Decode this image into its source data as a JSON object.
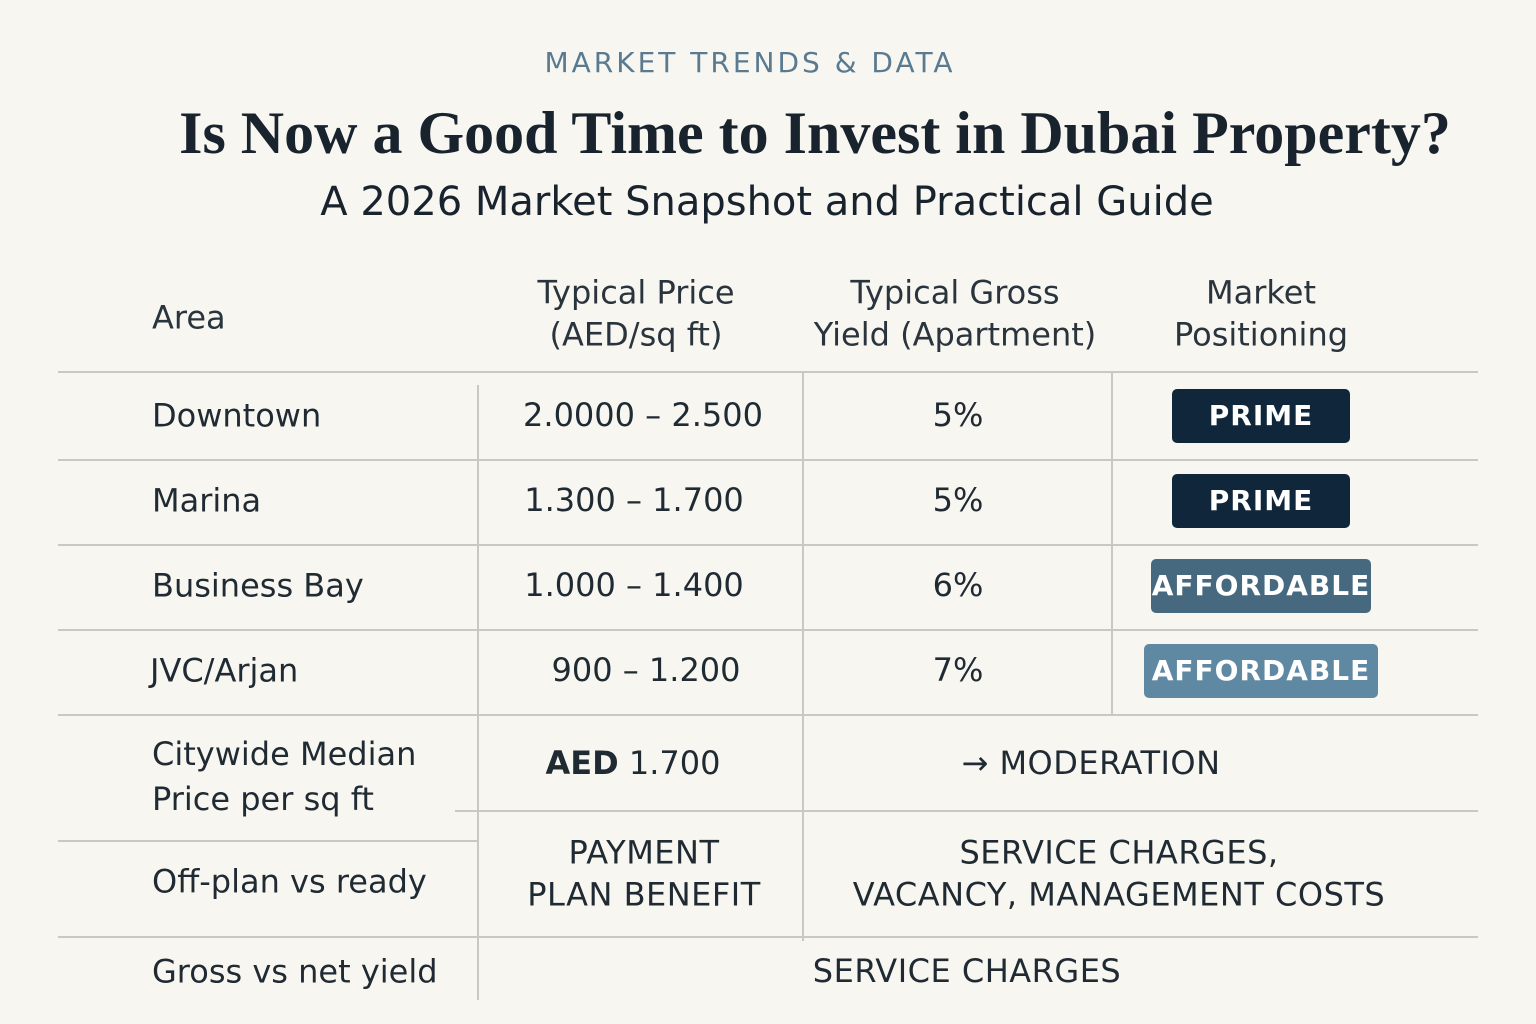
{
  "header": {
    "kicker": "MARKET TRENDS & DATA",
    "title": "Is Now a Good Time to Invest in Dubai Property?",
    "subtitle": "A 2026 Market Snapshot and Practical Guide"
  },
  "table": {
    "columns": [
      "Area",
      "Typical Price\n(AED/sq ft)",
      "Typical Gross\nYield (Apartment)",
      "Market\nPositioning"
    ],
    "rows": [
      [
        "Downtown",
        "2.0000 – 2.500",
        "5%",
        "PRIME"
      ],
      [
        "Marina",
        "1.300 – 1.700",
        "5%",
        "PRIME"
      ],
      [
        "Business Bay",
        "1.000 – 1.400",
        "6%",
        "AFFORDABLE"
      ],
      [
        "JVC/Arjan",
        "900 – 1.200",
        "7%",
        "AFFORDABLE"
      ]
    ],
    "summary": [
      {
        "label": "Citywide Median\nPrice per sq ft",
        "currency": "AED",
        "value": "1.700",
        "note": "→ MODERATION"
      },
      {
        "label": "Off-plan vs ready",
        "value": "PAYMENT\nPLAN BENEFIT",
        "note": "SERVICE CHARGES,\nVACANCY, MANAGEMENT COSTS"
      },
      {
        "label": "Gross vs net yield",
        "note": "SERVICE CHARGES"
      }
    ]
  }
}
